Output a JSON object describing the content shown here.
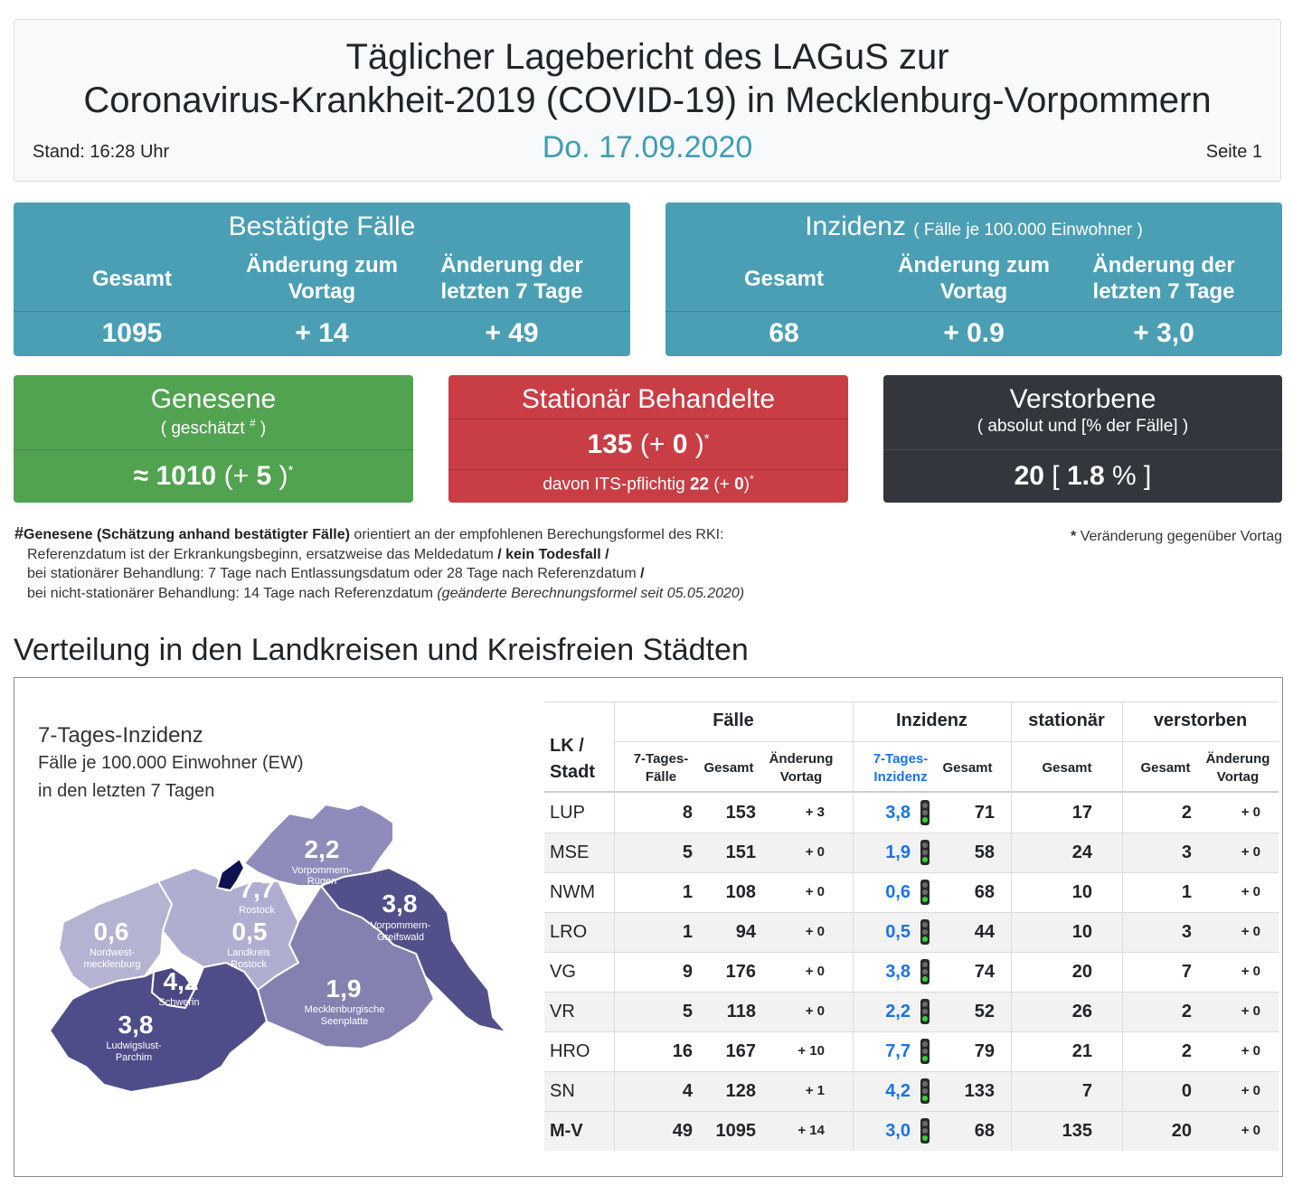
{
  "header": {
    "title_line1": "Täglicher Lagebericht des LAGuS zur",
    "title_line2": "Coronavirus-Krankheit-2019 (COVID-19) in Mecklenburg-Vorpommern",
    "stand": "Stand: 16:28 Uhr",
    "date": "Do. 17.09.2020",
    "page": "Seite 1"
  },
  "confirmed": {
    "title": "Bestätigte Fälle",
    "col1": "Gesamt",
    "col2a": "Änderung zum",
    "col2b": "Vortag",
    "col3a": "Änderung der",
    "col3b": "letzten 7 Tage",
    "total": "1095",
    "change_day": "+ 14",
    "change_7": "+ 49"
  },
  "incidence": {
    "title": "Inzidenz",
    "subtitle": "( Fälle je 100.000 Einwohner )",
    "col1": "Gesamt",
    "col2a": "Änderung zum",
    "col2b": "Vortag",
    "col3a": "Änderung der",
    "col3b": "letzten 7 Tage",
    "total": "68",
    "change_day": "+ 0.9",
    "change_7": "+ 3,0"
  },
  "recovered": {
    "title": "Genesene",
    "subtitle_a": "( geschätzt ",
    "subtitle_mark": "#",
    "subtitle_b": " )",
    "approx": "≈ ",
    "value": "1010",
    "change_open": " (+ ",
    "change": "5",
    "change_close": " )",
    "star": "*"
  },
  "hospital": {
    "title": "Stationär Behandelte",
    "value": "135",
    "change_open": " (+ ",
    "change": "0",
    "change_close": " )",
    "star": "*",
    "its_label": "davon ITS-pflichtig ",
    "its_value": "22",
    "its_change_open": " (+ ",
    "its_change": "0",
    "its_change_close": ")",
    "its_star": "*"
  },
  "deceased": {
    "title": "Verstorbene",
    "subtitle": "( absolut und [% der Fälle] )",
    "value": "20",
    "pct_open": " [ ",
    "pct": "1.8",
    "pct_unit": " % ]"
  },
  "notes": {
    "hash": "#",
    "lead_bold": "Genesene (Schätzung anhand bestätigter Fälle)",
    "lead_rest": " orientiert an der empfohlenen Berechungsformel des RKI:",
    "line2": "Referenzdatum ist der Erkrankungsbeginn, ersatzweise das Meldedatum ",
    "line2_b": "/ kein Todesfall /",
    "line3": "bei stationärer Behandlung: 7 Tage nach Entlassungsdatum oder 28 Tage nach Referenzdatum ",
    "line3_b": "/",
    "line4": "bei nicht-stationärer Behandlung: 14 Tage nach Referenzdatum ",
    "line4_i": "(geänderte Berechnungsformel seit 05.05.2020)",
    "footnote_star": "*",
    "footnote": " Veränderung gegenüber Vortag"
  },
  "section_title": "Verteilung in den Landkreisen und Kreisfreien Städten",
  "map": {
    "title": "7-Tages-Inzidenz",
    "sub1": "Fälle je 100.000 Einwohner (EW)",
    "sub2": "in den letzten 7 Tagen",
    "regions": [
      {
        "value": "2,2",
        "name1": "Vorpommern-",
        "name2": "Rügen"
      },
      {
        "value": "7,7",
        "name1": "Rostock",
        "name2": ""
      },
      {
        "value": "3,8",
        "name1": "Vorpommern-",
        "name2": "Greifswald"
      },
      {
        "value": "0,6",
        "name1": "Nordwest-",
        "name2": "mecklenburg"
      },
      {
        "value": "0,5",
        "name1": "Landkreis",
        "name2": "Rostock"
      },
      {
        "value": "4,2",
        "name1": "Schwerin",
        "name2": ""
      },
      {
        "value": "1,9",
        "name1": "Mecklenburgische",
        "name2": "Seenplatte"
      },
      {
        "value": "3,8",
        "name1": "Ludwigslust-",
        "name2": "Parchim"
      }
    ]
  },
  "table": {
    "h_lk1": "LK /",
    "h_lk2": "Stadt",
    "h_faelle": "Fälle",
    "h_inzidenz": "Inzidenz",
    "h_stationaer": "stationär",
    "h_verstorben": "verstorben",
    "h_7tf1": "7-Tages-",
    "h_7tf2": "Fälle",
    "h_gesamt": "Gesamt",
    "h_aend1": "Änderung",
    "h_aend2": "Vortag",
    "h_7ti1": "7-Tages-",
    "h_7ti2": "Inzidenz",
    "rows": [
      [
        "LUP",
        "8",
        "153",
        "+ 3",
        "3,8",
        "71",
        "17",
        "2",
        "+ 0"
      ],
      [
        "MSE",
        "5",
        "151",
        "+ 0",
        "1,9",
        "58",
        "24",
        "3",
        "+ 0"
      ],
      [
        "NWM",
        "1",
        "108",
        "+ 0",
        "0,6",
        "68",
        "10",
        "1",
        "+ 0"
      ],
      [
        "LRO",
        "1",
        "94",
        "+ 0",
        "0,5",
        "44",
        "10",
        "3",
        "+ 0"
      ],
      [
        "VG",
        "9",
        "176",
        "+ 0",
        "3,8",
        "74",
        "20",
        "7",
        "+ 0"
      ],
      [
        "VR",
        "5",
        "118",
        "+ 0",
        "2,2",
        "52",
        "26",
        "2",
        "+ 0"
      ],
      [
        "HRO",
        "16",
        "167",
        "+ 10",
        "7,7",
        "79",
        "21",
        "2",
        "+ 0"
      ],
      [
        "SN",
        "4",
        "128",
        "+ 1",
        "4,2",
        "133",
        "7",
        "0",
        "+ 0"
      ],
      [
        "M-V",
        "49",
        "1095",
        "+ 14",
        "3,0",
        "68",
        "135",
        "20",
        "+ 0"
      ]
    ]
  },
  "colors": {
    "teal": "#4a9fb5",
    "green": "#52a350",
    "red": "#c93d45",
    "dark": "#33373d",
    "date_blue": "#3f9eb3",
    "link_blue": "#1a73e8",
    "traffic_green": "#35d435"
  }
}
